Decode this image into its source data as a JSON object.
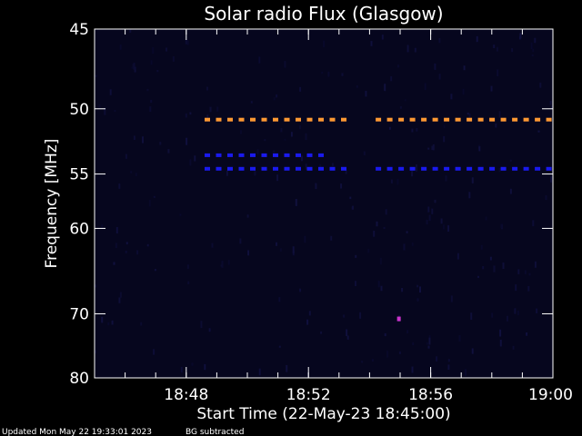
{
  "chart_data": {
    "type": "heatmap",
    "title": "Solar radio Flux (Glasgow)",
    "xlabel": "Start Time (22-May-23 18:45:00)",
    "ylabel": "Frequency [MHz]",
    "x_tick_labels": [
      "18:48",
      "18:52",
      "18:56",
      "19:00"
    ],
    "x_range_minutes": [
      0,
      15
    ],
    "x_ticks_minutes": [
      3,
      7,
      11,
      15
    ],
    "y_tick_labels": [
      "45",
      "50",
      "55",
      "60",
      "70",
      "80"
    ],
    "y_ticks_mhz": [
      45,
      50,
      55,
      60,
      70,
      80
    ],
    "y_range_mhz": [
      45,
      80
    ],
    "y_scale": "reciprocal",
    "background_color": "#06061e",
    "features": [
      {
        "frequency_mhz": 50.8,
        "start_minute": 3.6,
        "end_minute": 8.3,
        "color": "#ff9933"
      },
      {
        "frequency_mhz": 50.8,
        "start_minute": 9.2,
        "end_minute": 15.0,
        "color": "#ff9933"
      },
      {
        "frequency_mhz": 53.5,
        "start_minute": 3.6,
        "end_minute": 7.8,
        "color": "#1a1aee"
      },
      {
        "frequency_mhz": 54.6,
        "start_minute": 3.6,
        "end_minute": 8.3,
        "color": "#1a1aee"
      },
      {
        "frequency_mhz": 54.6,
        "start_minute": 9.2,
        "end_minute": 15.0,
        "color": "#1a1aee"
      },
      {
        "frequency_mhz": 70.7,
        "start_minute": 9.9,
        "end_minute": 10.0,
        "color": "#cc33cc"
      }
    ]
  },
  "footer": {
    "updated": "Updated Mon May 22 19:33:01 2023",
    "note": "BG subtracted"
  }
}
